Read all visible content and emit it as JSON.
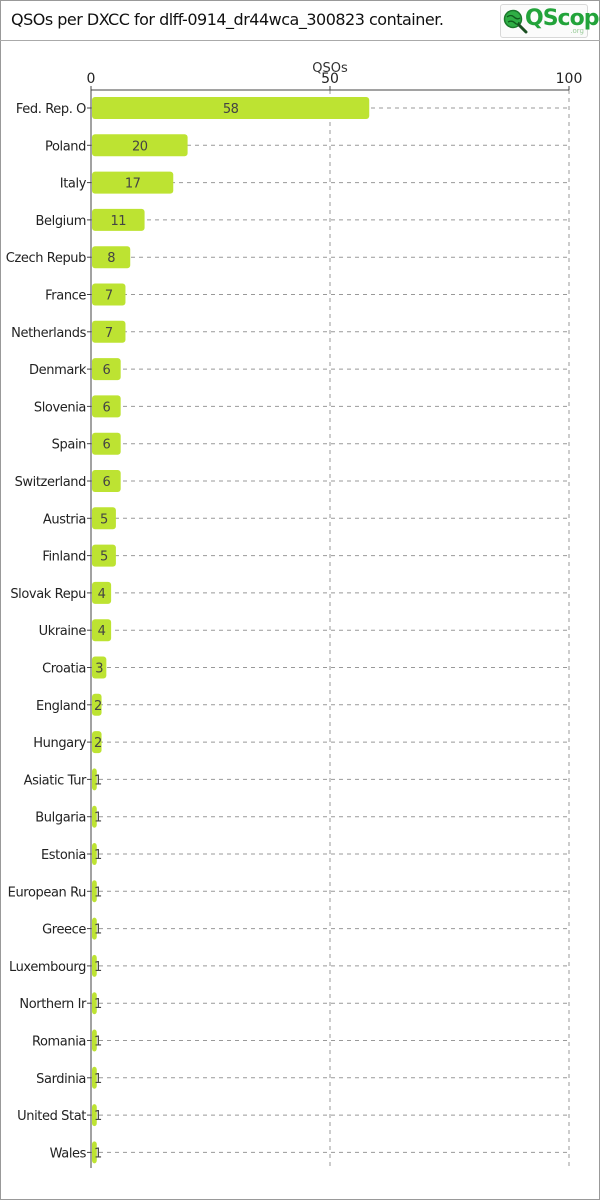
{
  "header": {
    "title": "QSOs per DXCC for dlff-0914_dr44wca_300823 container.",
    "logo_text": "QScope",
    "logo_sub": ".org"
  },
  "colors": {
    "bar": "#bde332",
    "grid": "#999999",
    "axis": "#444444"
  },
  "chart_data": {
    "type": "bar",
    "orientation": "horizontal",
    "title": "QSOs per DXCC for dlff-0914_dr44wca_300823 container.",
    "xlabel": "QSOs",
    "xlim": [
      0,
      100
    ],
    "x_ticks": [
      "0",
      "50",
      "100"
    ],
    "grid": true,
    "categories": [
      "Fed. Rep. O",
      "Poland",
      "Italy",
      "Belgium",
      "Czech Repub",
      "France",
      "Netherlands",
      "Denmark",
      "Slovenia",
      "Spain",
      "Switzerland",
      "Austria",
      "Finland",
      "Slovak Repu",
      "Ukraine",
      "Croatia",
      "England",
      "Hungary",
      "Asiatic Tur",
      "Bulgaria",
      "Estonia",
      "European Ru",
      "Greece",
      "Luxembourg",
      "Northern Ir",
      "Romania",
      "Sardinia",
      "United Stat",
      "Wales"
    ],
    "values": [
      58,
      20,
      17,
      11,
      8,
      7,
      7,
      6,
      6,
      6,
      6,
      5,
      5,
      4,
      4,
      3,
      2,
      2,
      1,
      1,
      1,
      1,
      1,
      1,
      1,
      1,
      1,
      1,
      1
    ]
  }
}
